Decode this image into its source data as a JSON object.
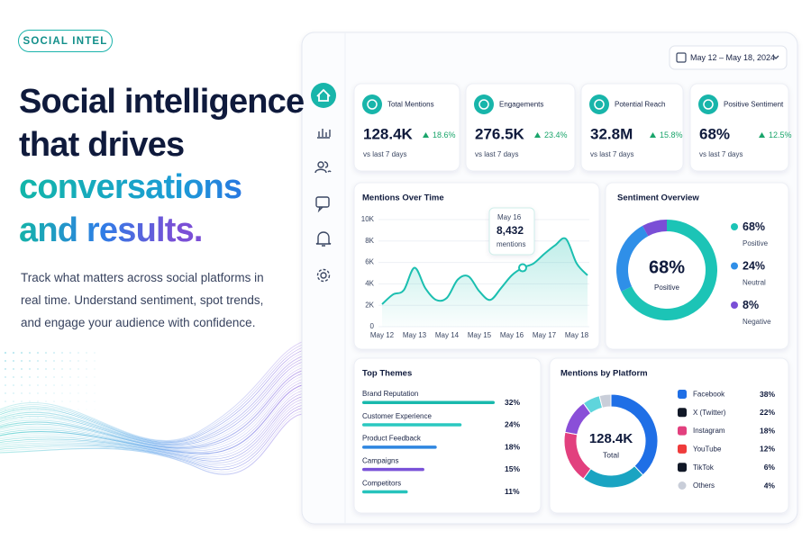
{
  "badge": "SOCIAL INTEL",
  "hero": {
    "title_lines": [
      "Social intelligence",
      "that drives",
      "conversations",
      "and results."
    ],
    "description": "Track what matters across social platforms in real time. Understand sentiment, spot trends, and engage your audience with confidence."
  },
  "date_range": "May 12 – May 18, 2024",
  "kpis": [
    {
      "label": "Total Mentions",
      "value": "128.4K",
      "change": "18.6%",
      "note": "vs last 7 days"
    },
    {
      "label": "Engagements",
      "value": "276.5K",
      "change": "23.4%",
      "note": "vs last 7 days"
    },
    {
      "label": "Potential Reach",
      "value": "32.8M",
      "change": "15.8%",
      "note": "vs last 7 days"
    },
    {
      "label": "Positive Sentiment",
      "value": "68%",
      "change": "12.5%",
      "note": "vs last 7 days"
    }
  ],
  "chart_data": [
    {
      "type": "line",
      "title": "Mentions Over Time",
      "categories": [
        "May 12",
        null,
        null,
        "May 13",
        null,
        null,
        "May 14",
        null,
        null,
        "May 15",
        null,
        null,
        "May 16",
        null,
        null,
        "May 17",
        null,
        null,
        "May 18",
        null
      ],
      "values": [
        2100,
        3000,
        3400,
        5500,
        3600,
        2500,
        2700,
        4400,
        4700,
        3300,
        2500,
        3600,
        4800,
        5500,
        5900,
        6800,
        7600,
        8200,
        5900,
        4800
      ],
      "color": "#1bbfb0",
      "ylim": [
        0,
        10000
      ],
      "yticks": [
        0,
        {
          "value": 2000,
          "label": "2K"
        },
        {
          "value": 4000,
          "label": "4K"
        },
        {
          "value": 6000,
          "label": "6K"
        },
        {
          "value": 8000,
          "label": "8K"
        },
        {
          "value": 10000,
          "label": "10K"
        }
      ],
      "grid": true,
      "annotation": {
        "date": "May 16",
        "value": "8,432",
        "unit": "mentions"
      }
    },
    {
      "type": "pie",
      "title": "Sentiment Overview",
      "categories": [
        "Positive",
        "Neutral",
        "Negative"
      ],
      "values": [
        68,
        24,
        8
      ],
      "value_labels": [
        "68%",
        "24%",
        "8%"
      ],
      "colors": [
        "#1cc4b6",
        "#2f8fe8",
        "#7a4fd6"
      ]
    },
    {
      "type": "bar",
      "title": "Top Themes",
      "categories": [
        "Brand Reputation",
        "Customer Experience",
        "Product Feedback",
        "Campaigns",
        "Competitors"
      ],
      "values": [
        32,
        24,
        18,
        15,
        11
      ],
      "value_labels": [
        "32%",
        "24%",
        "18%",
        "15%",
        "11%"
      ],
      "colors": [
        "#19b9ad",
        "#2ac8c0",
        "#2f86e0",
        "#7a52d8",
        "#27c3bc"
      ]
    },
    {
      "type": "pie",
      "title": "Mentions by Platform",
      "center_label": "Total",
      "categories": [
        "Facebook",
        "X (Twitter)",
        "Instagram",
        "YouTube",
        "TikTok",
        "Others"
      ],
      "values": [
        38,
        22,
        18,
        12,
        6,
        4
      ],
      "value_labels": [
        "38%",
        "22%",
        "18%",
        "12%",
        "6%",
        "4%"
      ],
      "colors": [
        "#1f6fe6",
        "#1aa4c2",
        "#e2407e",
        "#8a4fd8",
        "#5fd5dc",
        "#c9ced9"
      ]
    }
  ]
}
